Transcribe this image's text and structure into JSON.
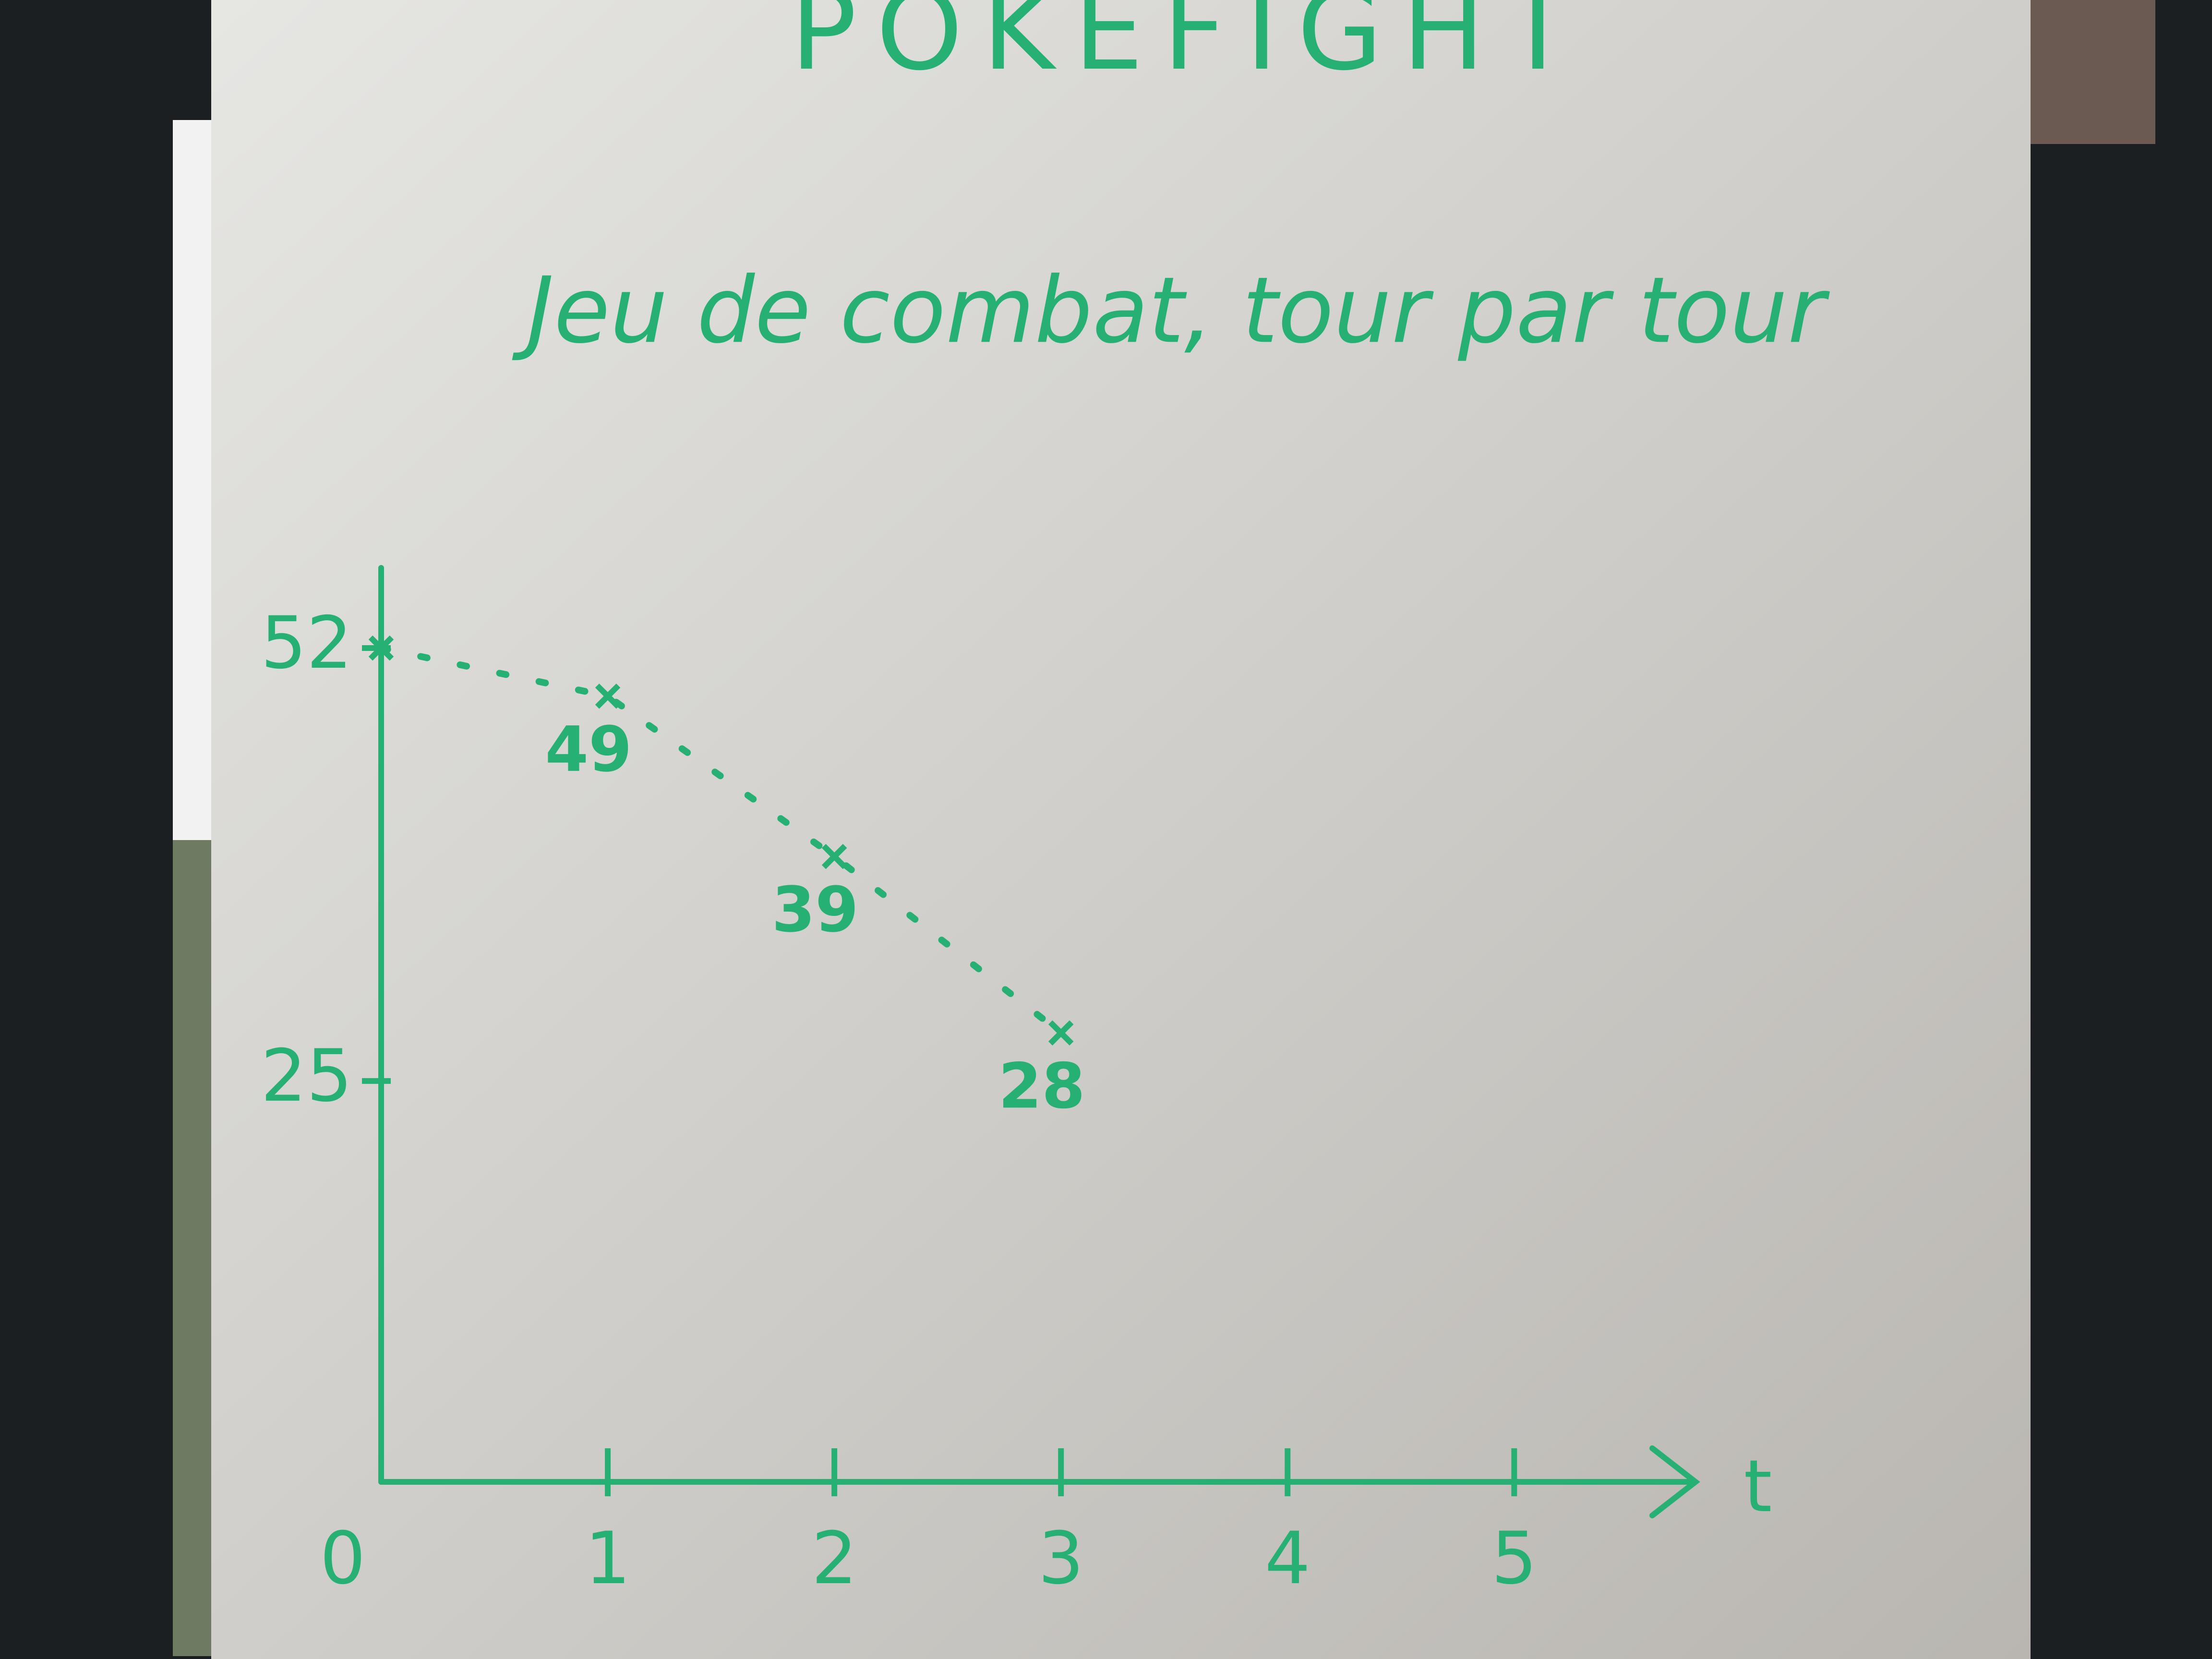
{
  "chart_data": {
    "type": "line",
    "title": "POKEFIGHT",
    "subtitle": "Jeu de combat, tour par tour",
    "x_label": "t",
    "x": [
      0,
      1,
      2,
      3
    ],
    "series": [
      {
        "color": "#27b074",
        "values": [
          52,
          49,
          39,
          28
        ]
      }
    ],
    "xlim": [
      0,
      5.8
    ],
    "xticks": [
      0,
      1,
      2,
      3,
      4,
      5
    ],
    "ylim": [
      0,
      57
    ],
    "yticks": [
      25,
      52
    ]
  }
}
